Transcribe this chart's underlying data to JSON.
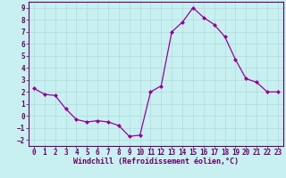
{
  "x": [
    0,
    1,
    2,
    3,
    4,
    5,
    6,
    7,
    8,
    9,
    10,
    11,
    12,
    13,
    14,
    15,
    16,
    17,
    18,
    19,
    20,
    21,
    22,
    23
  ],
  "y": [
    2.3,
    1.8,
    1.7,
    0.6,
    -0.3,
    -0.5,
    -0.4,
    -0.5,
    -0.8,
    -1.7,
    -1.6,
    2.0,
    2.5,
    7.0,
    7.8,
    9.0,
    8.2,
    7.6,
    6.6,
    4.7,
    3.1,
    2.8,
    2.0,
    2.0
  ],
  "line_color": "#990099",
  "marker": "D",
  "marker_size": 2,
  "bg_color": "#c8f0f0",
  "grid_color": "#aadddd",
  "xlabel": "Windchill (Refroidissement éolien,°C)",
  "xlabel_color": "#660066",
  "tick_color": "#660066",
  "axis_color": "#660066",
  "xlim": [
    -0.5,
    23.5
  ],
  "ylim": [
    -2.5,
    9.5
  ],
  "yticks": [
    -2,
    -1,
    0,
    1,
    2,
    3,
    4,
    5,
    6,
    7,
    8,
    9
  ],
  "xticks": [
    0,
    1,
    2,
    3,
    4,
    5,
    6,
    7,
    8,
    9,
    10,
    11,
    12,
    13,
    14,
    15,
    16,
    17,
    18,
    19,
    20,
    21,
    22,
    23
  ],
  "tick_fontsize": 5.5,
  "xlabel_fontsize": 6.0
}
